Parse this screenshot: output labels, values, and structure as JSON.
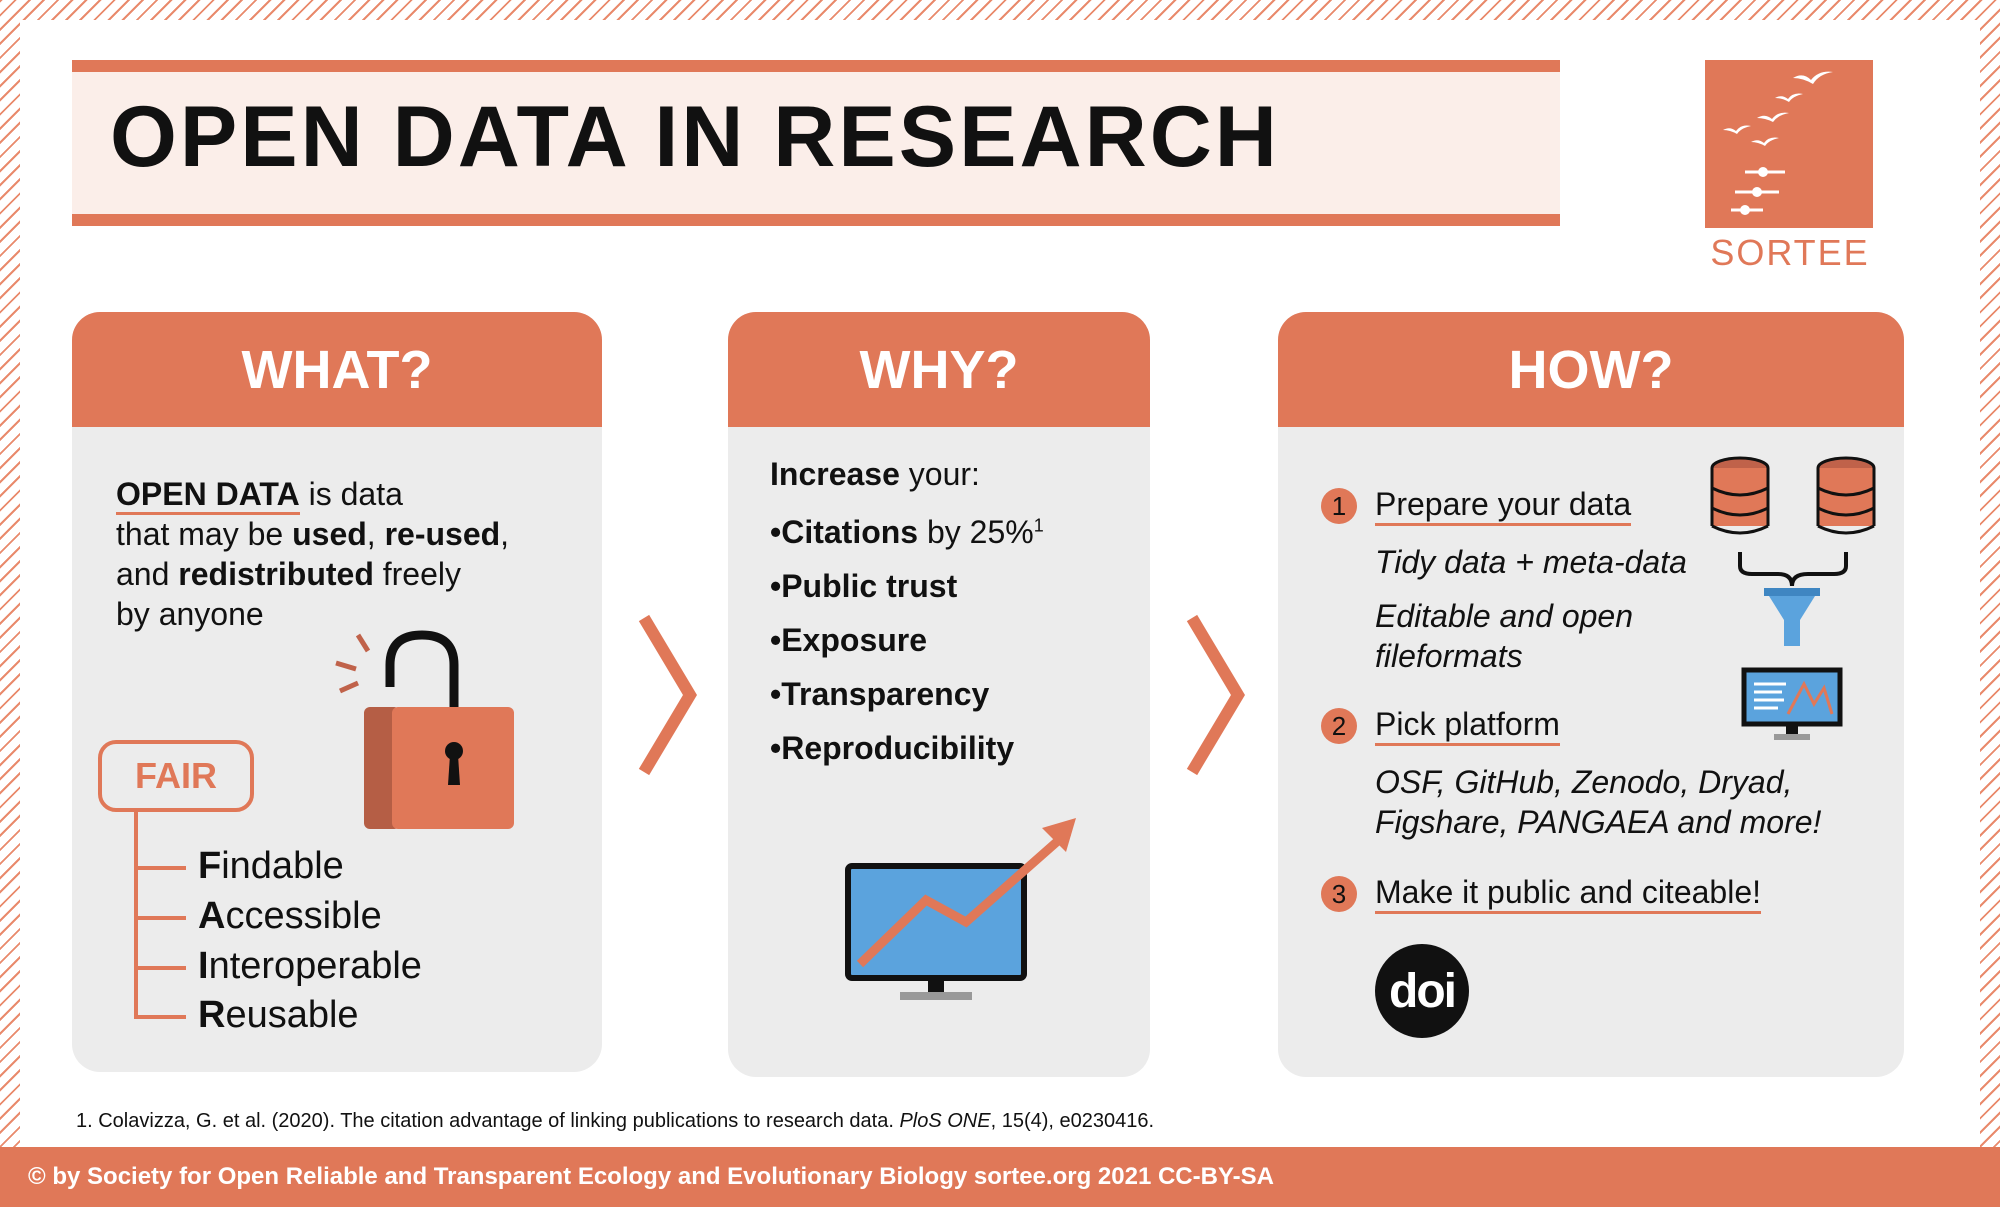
{
  "title": "OPEN DATA IN RESEARCH",
  "logo": {
    "name": "SORTEE"
  },
  "what": {
    "heading": "WHAT?",
    "line1_bold": "OPEN DATA",
    "line1_rest": " is data",
    "line2_pre": "that may be ",
    "line2_b1": "used",
    "line2_mid": ", ",
    "line2_b2": "re-used",
    "line2_post": ",",
    "line3_pre": "and ",
    "line3_b": "redistributed",
    "line3_post": " freely",
    "line4": "by anyone",
    "fair_label": "FAIR",
    "fair": [
      {
        "letter": "F",
        "rest": "indable"
      },
      {
        "letter": "A",
        "rest": "ccessible"
      },
      {
        "letter": "I",
        "rest": "nteroperable"
      },
      {
        "letter": "R",
        "rest": "eusable"
      }
    ]
  },
  "why": {
    "heading": "WHY?",
    "intro_bold": "Increase",
    "intro_rest": " your:",
    "items": [
      {
        "bold": "•Citations",
        "rest": " by 25%",
        "sup": "1"
      },
      {
        "bold": "•Public trust",
        "rest": "",
        "sup": ""
      },
      {
        "bold": "•Exposure",
        "rest": "",
        "sup": ""
      },
      {
        "bold": "•Transparency",
        "rest": "",
        "sup": ""
      },
      {
        "bold": "•Reproducibility",
        "rest": "",
        "sup": ""
      }
    ]
  },
  "how": {
    "heading": "HOW?",
    "steps": [
      {
        "num": "1",
        "label": "Prepare your data"
      },
      {
        "num": "2",
        "label": "Pick platform"
      },
      {
        "num": "3",
        "label": "Make it public and citeable!"
      }
    ],
    "step1_d1": "Tidy data + meta-data",
    "step1_d2": "Editable and open",
    "step1_d3": "fileformats",
    "step2_d1": "OSF, GitHub, Zenodo, Dryad,",
    "step2_d2": "Figshare, PANGAEA and more!",
    "doi_label": "doi"
  },
  "footnote": {
    "text": "1. Colavizza, G. et al. (2020). The citation advantage of linking publications to research data. ",
    "journal": "PloS ONE",
    "rest": ", 15(4), e0230416."
  },
  "footer": "© by Society for Open Reliable and Transparent Ecology and Evolutionary Biology sortee.org 2021 CC-BY-SA",
  "colors": {
    "accent": "#e07858",
    "card": "#ececec",
    "title_bg": "#fbeee9",
    "screen": "#5ba3dd"
  }
}
